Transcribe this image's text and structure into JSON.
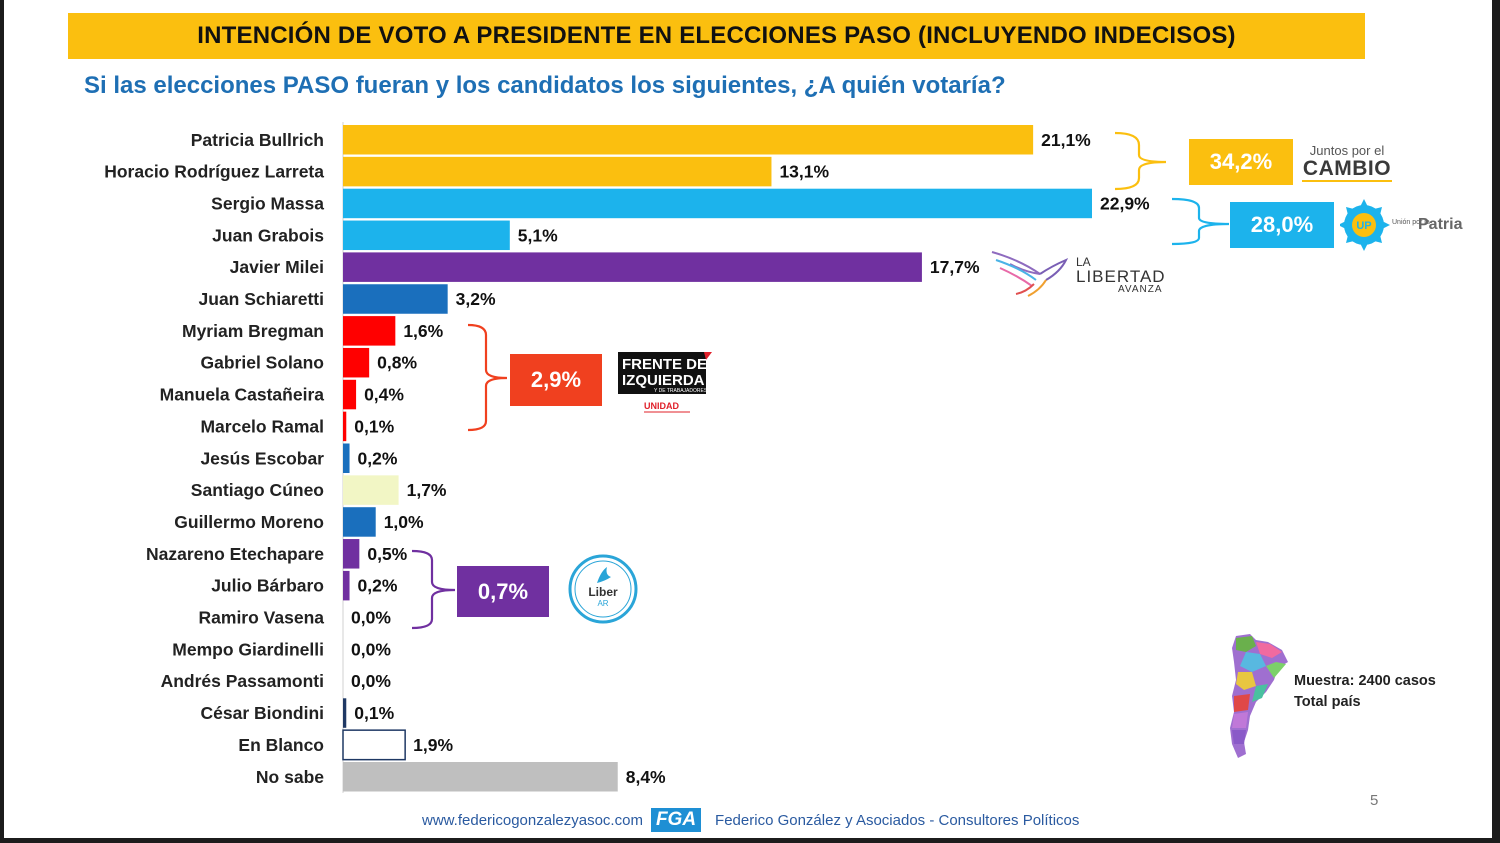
{
  "title": "INTENCIÓN DE VOTO A PRESIDENTE EN ELECCIONES PASO (INCLUYENDO INDECISOS)",
  "subtitle": "Si las elecciones PASO fueran y los candidatos los siguientes, ¿A quién votaría?",
  "chart_data": {
    "type": "bar",
    "orientation": "horizontal",
    "categories": [
      "Patricia Bullrich",
      "Horacio Rodríguez Larreta",
      "Sergio Massa",
      "Juan Grabois",
      "Javier Milei",
      "Juan Schiaretti",
      "Myriam Bregman",
      "Gabriel Solano",
      "Manuela Castañeira",
      "Marcelo Ramal",
      "Jesús Escobar",
      "Santiago Cúneo",
      "Guillermo Moreno",
      "Nazareno Etechapare",
      "Julio Bárbaro",
      "Ramiro Vasena",
      "Mempo Giardinelli",
      "Andrés Passamonti",
      "César Biondini",
      "En Blanco",
      "No sabe"
    ],
    "values": [
      21.1,
      13.1,
      22.9,
      5.1,
      17.7,
      3.2,
      1.6,
      0.8,
      0.4,
      0.1,
      0.2,
      1.7,
      1.0,
      0.5,
      0.2,
      0.0,
      0.0,
      0.0,
      0.1,
      1.9,
      8.4
    ],
    "value_labels": [
      "21,1%",
      "13,1%",
      "22,9%",
      "5,1%",
      "17,7%",
      "3,2%",
      "1,6%",
      "0,8%",
      "0,4%",
      "0,1%",
      "0,2%",
      "1,7%",
      "1,0%",
      "0,5%",
      "0,2%",
      "0,0%",
      "0,0%",
      "0,0%",
      "0,1%",
      "1,9%",
      "8,4%"
    ],
    "colors": [
      "#fbbf0f",
      "#fbbf0f",
      "#1cb3ec",
      "#1cb3ec",
      "#7030a0",
      "#1a6fbd",
      "#ff0000",
      "#ff0000",
      "#ff0000",
      "#ff0000",
      "#1a6fbd",
      "#f2f6c5",
      "#1a6fbd",
      "#7030a0",
      "#7030a0",
      "#7030a0",
      "#1a6fbd",
      "#1a6fbd",
      "#1f3864",
      "#ffffff",
      "#bfbfbf"
    ],
    "outlined": [
      false,
      false,
      false,
      false,
      false,
      false,
      false,
      false,
      false,
      false,
      false,
      false,
      false,
      false,
      false,
      false,
      false,
      false,
      false,
      true,
      false
    ],
    "xlim": [
      0,
      23
    ],
    "grid": false,
    "legend": "none"
  },
  "groups": [
    {
      "value": "34,2%",
      "color": "#fbbf0f",
      "logo": "Juntos por el CAMBIO",
      "members": [
        0,
        1
      ]
    },
    {
      "value": "28,0%",
      "color": "#1cb3ec",
      "logo": "Unión por la Patria",
      "members": [
        2,
        3
      ]
    },
    {
      "value": "2,9%",
      "color": "#f0401f",
      "logo": "Frente de Izquierda",
      "members": [
        6,
        9
      ]
    },
    {
      "value": "0,7%",
      "color": "#7030a0",
      "logo": "Liber.AR",
      "members": [
        13,
        15
      ]
    }
  ],
  "logos": {
    "juntos_line1": "Juntos por el",
    "juntos_line2": "CAMBIO",
    "union_small": "Unión por la",
    "union_big": "Patria",
    "union_badge": "UP",
    "lla_line1": "LA",
    "lla_line2": "LIBERTAD",
    "lla_line3": "AVANZA",
    "fit_line1": "FRENTE DE",
    "fit_line2": "IZQUIERDA",
    "fit_line3": "Y DE TRABAJADORES",
    "fit_line4": "UNIDAD",
    "liber_text": "Liber",
    "liber_sub": "AR"
  },
  "sample": {
    "line1": "Muestra: 2400 casos",
    "line2": "Total país"
  },
  "page_number": "5",
  "footer": {
    "url": "www.federicogonzalezyasoc.com",
    "logo": "FGA",
    "company": "Federico González y Asociados - Consultores Políticos"
  }
}
